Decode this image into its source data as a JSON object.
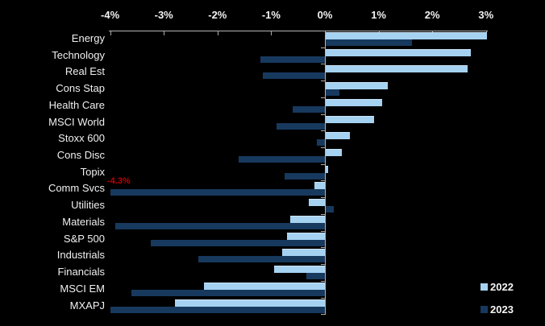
{
  "chart_data": {
    "type": "bar",
    "orientation": "horizontal",
    "title": "",
    "xlabel": "",
    "ylabel": "",
    "xlim": [
      -4,
      3
    ],
    "x_ticks": [
      "-4%",
      "-3%",
      "-2%",
      "-1%",
      "0%",
      "1%",
      "2%",
      "3%"
    ],
    "grid": false,
    "legend_position": "bottom-right",
    "background_color": "#000000",
    "axis_color": "#b5b5b5",
    "text_color": "#f2f2f2",
    "categories": [
      "Energy",
      "Technology",
      "Real Est",
      "Cons Stap",
      "Health Care",
      "MSCI World",
      "Stoxx 600",
      "Cons Disc",
      "Topix",
      "Comm Svcs",
      "Utilities",
      "Materials",
      "S&P 500",
      "Industrials",
      "Financials",
      "MSCI EM",
      "MXAPJ"
    ],
    "series": [
      {
        "name": "2022",
        "color": "#a6d2f2",
        "values": [
          3.0,
          2.7,
          2.65,
          1.15,
          1.05,
          0.9,
          0.45,
          0.3,
          0.05,
          -0.2,
          -0.3,
          -0.65,
          -0.7,
          -0.8,
          -0.95,
          -2.25,
          -2.8
        ]
      },
      {
        "name": "2023",
        "color": "#17395e",
        "values": [
          1.6,
          -1.2,
          -1.15,
          0.25,
          -0.6,
          -0.9,
          -0.15,
          -1.6,
          -0.75,
          -4.3,
          0.15,
          -3.9,
          -3.25,
          -2.35,
          -0.35,
          -3.6,
          -4.0
        ]
      }
    ],
    "annotation": {
      "text": "-4.3%",
      "category": "Comm Svcs",
      "series": "2023",
      "color": "#c00000",
      "note": "bar clipped at axis minimum -4%"
    }
  }
}
